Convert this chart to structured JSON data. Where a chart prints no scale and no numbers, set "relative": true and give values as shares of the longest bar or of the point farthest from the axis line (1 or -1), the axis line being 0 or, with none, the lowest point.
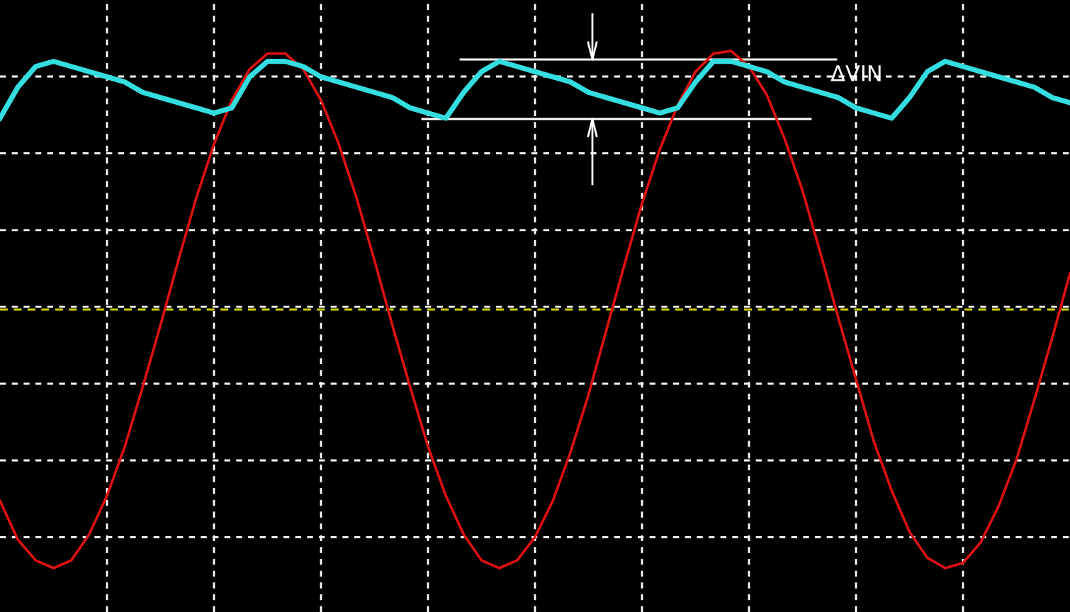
{
  "chart_data": {
    "type": "line",
    "relative": true,
    "grid": true,
    "line_style": "solid",
    "marker": "none",
    "categories": [
      null,
      null,
      null,
      null,
      null,
      null,
      null,
      null,
      null,
      null,
      null,
      null,
      null,
      null,
      null,
      null,
      null,
      null,
      null,
      null,
      null,
      null,
      null,
      null,
      null,
      null,
      null,
      null,
      null,
      null,
      null,
      null,
      null,
      null,
      null,
      null,
      null,
      null,
      null,
      null,
      null,
      null,
      null,
      null,
      null,
      null,
      null,
      null,
      null,
      null,
      null,
      null,
      null,
      null,
      null,
      null,
      null,
      null,
      null,
      null,
      null
    ],
    "series": [
      {
        "color": "#dd1111",
        "values": [
          -0.74,
          -0.89,
          -0.97,
          -1.0,
          -0.97,
          -0.87,
          -0.72,
          -0.53,
          -0.3,
          -0.06,
          0.19,
          0.43,
          0.64,
          0.81,
          0.93,
          0.99,
          0.99,
          0.93,
          0.81,
          0.64,
          0.43,
          0.19,
          -0.06,
          -0.3,
          -0.53,
          -0.72,
          -0.87,
          -0.97,
          -1.0,
          -0.97,
          -0.88,
          -0.74,
          -0.55,
          -0.33,
          -0.08,
          0.17,
          0.41,
          0.62,
          0.79,
          0.92,
          0.99,
          1.0,
          0.94,
          0.83,
          0.66,
          0.46,
          0.22,
          -0.03,
          -0.27,
          -0.51,
          -0.7,
          -0.86,
          -0.96,
          -1.0,
          -0.98,
          -0.9,
          -0.76,
          -0.58,
          -0.35,
          -0.11,
          0.14
        ]
      },
      {
        "color": "#33dde0",
        "values": [
          0.74,
          0.86,
          0.94,
          0.96,
          0.94,
          0.92,
          0.9,
          0.88,
          0.84,
          0.82,
          0.8,
          0.78,
          0.76,
          0.78,
          0.9,
          0.96,
          0.96,
          0.94,
          0.9,
          0.88,
          0.86,
          0.84,
          0.82,
          0.78,
          0.76,
          0.74,
          0.84,
          0.92,
          0.96,
          0.94,
          0.92,
          0.9,
          0.88,
          0.84,
          0.82,
          0.8,
          0.78,
          0.76,
          0.78,
          0.88,
          0.96,
          0.96,
          0.94,
          0.92,
          0.88,
          0.86,
          0.84,
          0.82,
          0.78,
          0.76,
          0.74,
          0.82,
          0.92,
          0.96,
          0.94,
          0.92,
          0.9,
          0.88,
          0.86,
          0.82,
          0.8
        ]
      }
    ],
    "ref_lines": [
      {
        "axis": "y",
        "value": 0,
        "color": "#cccc00",
        "line_style": "dashed"
      }
    ],
    "annotations": [
      "ΔVIN"
    ]
  }
}
